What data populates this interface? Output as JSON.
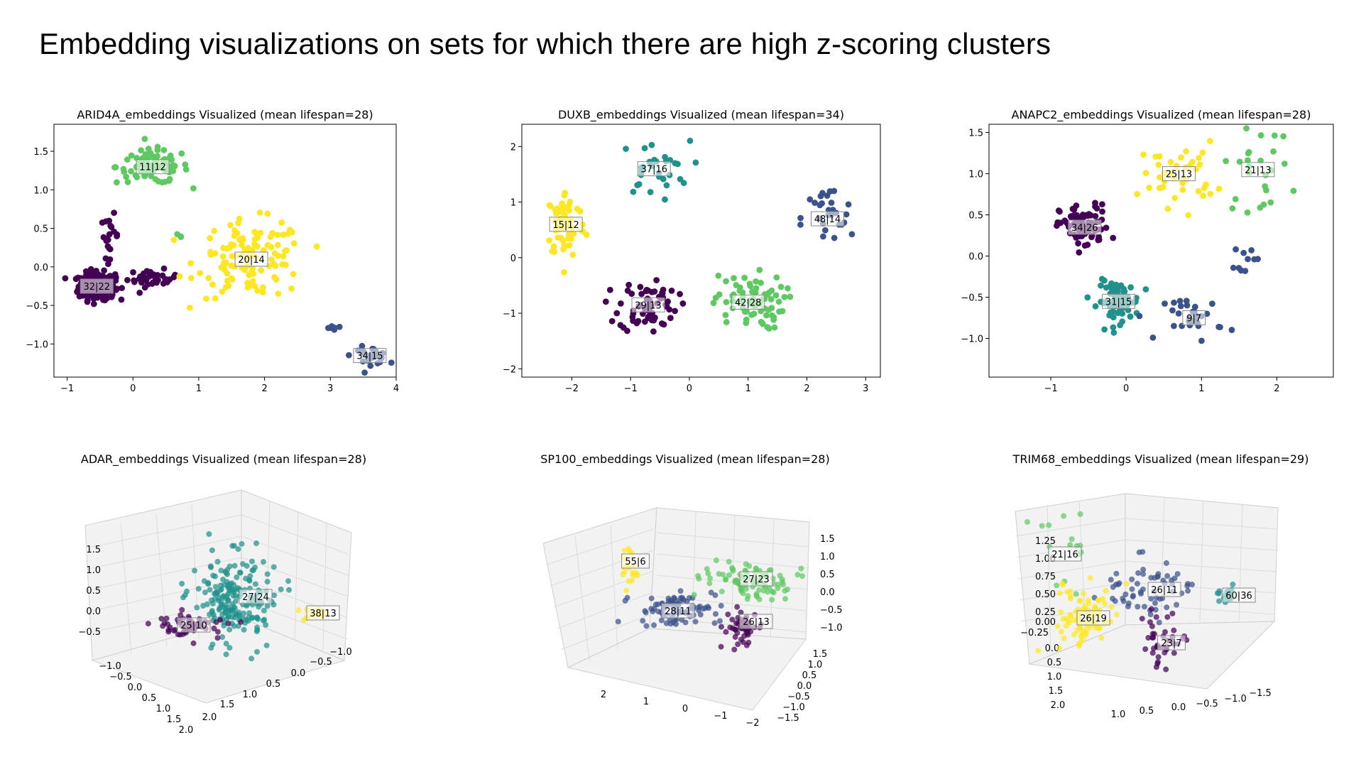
{
  "page": {
    "title": "Embedding visualizations on sets for which there are high z-scoring clusters"
  },
  "colors": {
    "purple": "#440154",
    "blue": "#3b528b",
    "teal": "#21918c",
    "green": "#5ec962",
    "yellow": "#fde725"
  },
  "chart_data": [
    {
      "type": "scatter",
      "title": "ARID4A_embeddings Visualized (mean lifespan=28)",
      "xlim": [
        -1.2,
        4.0
      ],
      "ylim": [
        -1.43,
        1.85
      ],
      "xticks": [
        -1,
        0,
        1,
        2,
        3,
        4
      ],
      "xtick_labels": [
        "−1",
        "0",
        "1",
        "2",
        "3",
        "4"
      ],
      "yticks": [
        -1.0,
        -0.5,
        0.0,
        0.5,
        1.0,
        1.5
      ],
      "ytick_labels": [
        "−1.0",
        "−0.5",
        "0.0",
        "0.5",
        "1.0",
        "1.5"
      ],
      "clusters": [
        {
          "label": "32|22",
          "color": "purple",
          "center": [
            -0.55,
            -0.25
          ],
          "n": 240,
          "spread": [
            0.25,
            0.16
          ],
          "extra": [
            {
              "c": [
                0.3,
                -0.15
              ],
              "s": [
                0.35,
                0.1
              ],
              "n": 35
            },
            {
              "c": [
                -0.35,
                0.4
              ],
              "s": [
                0.12,
                0.25
              ],
              "n": 20
            }
          ]
        },
        {
          "label": "11|12",
          "color": "green",
          "center": [
            0.3,
            1.3
          ],
          "n": 90,
          "spread": [
            0.5,
            0.2
          ],
          "extra": [
            {
              "c": [
                0.7,
                0.4
              ],
              "s": [
                0.05,
                0.03
              ],
              "n": 3
            }
          ]
        },
        {
          "label": "20|14",
          "color": "yellow",
          "center": [
            1.8,
            0.1
          ],
          "n": 120,
          "spread": [
            0.75,
            0.45
          ]
        },
        {
          "label": "34|15",
          "color": "blue",
          "center": [
            3.6,
            -1.15
          ],
          "n": 30,
          "spread": [
            0.25,
            0.1
          ],
          "extra": [
            {
              "c": [
                3.0,
                -0.8
              ],
              "s": [
                0.08,
                0.05
              ],
              "n": 6
            }
          ]
        }
      ]
    },
    {
      "type": "scatter",
      "title": "DUXB_embeddings Visualized (mean lifespan=34)",
      "xlim": [
        -2.85,
        3.25
      ],
      "ylim": [
        -2.15,
        2.4
      ],
      "xticks": [
        -2,
        -1,
        0,
        1,
        2,
        3
      ],
      "xtick_labels": [
        "−2",
        "−1",
        "0",
        "1",
        "2",
        "3"
      ],
      "yticks": [
        -2,
        -1,
        0,
        1,
        2
      ],
      "ytick_labels": [
        "−2",
        "−1",
        "0",
        "1",
        "2"
      ],
      "clusters": [
        {
          "label": "37|16",
          "color": "teal",
          "center": [
            -0.6,
            1.6
          ],
          "n": 30,
          "spread": [
            0.55,
            0.45
          ]
        },
        {
          "label": "48|14",
          "color": "blue",
          "center": [
            2.35,
            0.7
          ],
          "n": 28,
          "spread": [
            0.4,
            0.55
          ]
        },
        {
          "label": "15|12",
          "color": "yellow",
          "center": [
            -2.1,
            0.6
          ],
          "n": 75,
          "spread": [
            0.3,
            0.55
          ]
        },
        {
          "label": "29|13",
          "color": "purple",
          "center": [
            -0.7,
            -0.85
          ],
          "n": 70,
          "spread": [
            0.45,
            0.45
          ]
        },
        {
          "label": "42|28",
          "color": "green",
          "center": [
            1.0,
            -0.8
          ],
          "n": 75,
          "spread": [
            0.55,
            0.45
          ]
        }
      ]
    },
    {
      "type": "scatter",
      "title": "ANAPC2_embeddings Visualized (mean lifespan=28)",
      "xlim": [
        -1.82,
        2.75
      ],
      "ylim": [
        -1.47,
        1.6
      ],
      "xticks": [
        -1,
        0,
        1,
        2
      ],
      "xtick_labels": [
        "−1",
        "0",
        "1",
        "2"
      ],
      "yticks": [
        -1.0,
        -0.5,
        0.0,
        0.5,
        1.0,
        1.5
      ],
      "ytick_labels": [
        "−1.0",
        "−0.5",
        "0.0",
        "0.5",
        "1.0",
        "1.5"
      ],
      "clusters": [
        {
          "label": "34|26",
          "color": "purple",
          "center": [
            -0.55,
            0.35
          ],
          "n": 85,
          "spread": [
            0.3,
            0.25
          ]
        },
        {
          "label": "25|13",
          "color": "yellow",
          "center": [
            0.7,
            1.0
          ],
          "n": 40,
          "spread": [
            0.45,
            0.35
          ]
        },
        {
          "label": "21|13",
          "color": "green",
          "center": [
            1.75,
            1.05
          ],
          "n": 25,
          "spread": [
            0.4,
            0.45
          ]
        },
        {
          "label": "31|15",
          "color": "teal",
          "center": [
            -0.1,
            -0.55
          ],
          "n": 90,
          "spread": [
            0.25,
            0.22
          ]
        },
        {
          "label": "9|7",
          "color": "blue",
          "center": [
            0.9,
            -0.75
          ],
          "n": 30,
          "spread": [
            0.35,
            0.25
          ],
          "extra": [
            {
              "c": [
                1.6,
                0.0
              ],
              "s": [
                0.15,
                0.15
              ],
              "n": 10
            }
          ]
        }
      ]
    },
    {
      "type": "scatter",
      "projection": "3d",
      "title": "ADAR_embeddings Visualized (mean lifespan=28)",
      "ztick_labels": [
        "1.5",
        "1.0",
        "0.5",
        "0.0",
        "−0.5"
      ],
      "xtick_labels": [
        "−1.0",
        "−0.5",
        "0.0",
        "0.5",
        "1.0",
        "1.5",
        "2.0"
      ],
      "ytick_labels": [
        "2.0",
        "1.5",
        "1.0",
        "0.5",
        "0.0",
        "−0.5",
        "−1.0"
      ],
      "clusters": [
        {
          "label": "27|24",
          "color": "teal",
          "n": 200
        },
        {
          "label": "25|10",
          "color": "purple",
          "n": 60
        },
        {
          "label": "38|13",
          "color": "yellow",
          "n": 15
        }
      ]
    },
    {
      "type": "scatter",
      "projection": "3d",
      "title": "SP100_embeddings Visualized (mean lifespan=28)",
      "ztick_labels": [
        "1.5",
        "1.0",
        "0.5",
        "0.0",
        "−0.5",
        "−1.0"
      ],
      "xtick_labels": [
        "2",
        "1",
        "0",
        "−1",
        "−2"
      ],
      "ytick_labels": [
        "−1.5",
        "−1.0",
        "−0.5",
        "0.0",
        "0.5",
        "1.0",
        "1.5"
      ],
      "clusters": [
        {
          "label": "55|6",
          "color": "yellow",
          "n": 20
        },
        {
          "label": "28|11",
          "color": "blue",
          "n": 90
        },
        {
          "label": "27|23",
          "color": "green",
          "n": 90
        },
        {
          "label": "26|13",
          "color": "purple",
          "n": 50
        }
      ]
    },
    {
      "type": "scatter",
      "projection": "3d",
      "title": "TRIM68_embeddings Visualized (mean lifespan=29)",
      "ztick_labels": [
        "1.25",
        "1.00",
        "0.75",
        "0.50",
        "0.25",
        "0.00",
        "−0.25"
      ],
      "xtick_labels": [
        "0.0",
        "0.5",
        "1.0",
        "1.5",
        "2.0"
      ],
      "ytick_labels": [
        "1.0",
        "0.5",
        "0.0",
        "−0.5",
        "−1.0",
        "−1.5"
      ],
      "clusters": [
        {
          "label": "21|16",
          "color": "green",
          "n": 15
        },
        {
          "label": "26|11",
          "color": "blue",
          "n": 60
        },
        {
          "label": "60|36",
          "color": "teal",
          "n": 20
        },
        {
          "label": "26|19",
          "color": "yellow",
          "n": 90
        },
        {
          "label": "23|7",
          "color": "purple",
          "n": 40
        }
      ]
    }
  ]
}
